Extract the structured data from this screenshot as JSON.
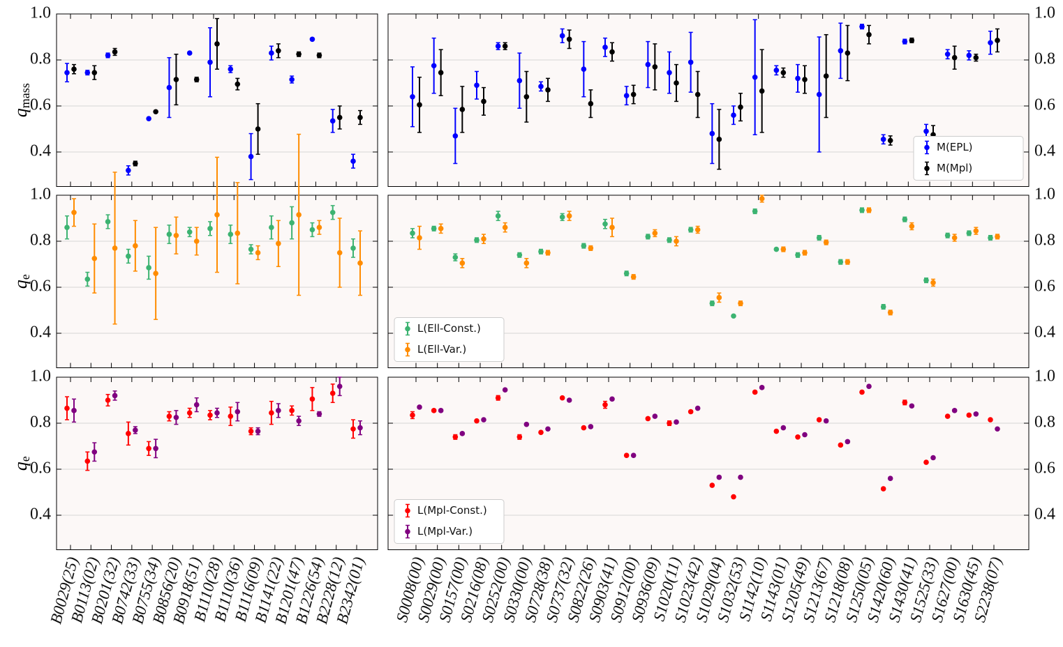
{
  "chart_data": {
    "type": "errorbar",
    "ylim": [
      0.25,
      1.0
    ],
    "yticks": [
      0.4,
      0.6,
      0.8,
      {
        "value": 1.0,
        "label": "1.0"
      }
    ],
    "grid": true,
    "ylabels": [
      {
        "text": "q",
        "sub": "mass"
      },
      {
        "text": "q",
        "sub": "e"
      },
      {
        "text": "q",
        "sub": "e"
      }
    ],
    "groups": [
      {
        "categories": [
          "B0029(25)",
          "B0113(02)",
          "B0201(32)",
          "B0742(33)",
          "B0755(34)",
          "B0856(20)",
          "B0918(51)",
          "B1110(28)",
          "B1110(36)",
          "B1116(09)",
          "B1141(22)",
          "B1201(47)",
          "B1226(54)",
          "B2228(12)",
          "B2342(01)"
        ],
        "panels": [
          {
            "series": [
              {
                "color": "#0000ff",
                "values": [
                  0.745,
                  0.745,
                  0.82,
                  0.32,
                  0.545,
                  0.68,
                  0.83,
                  0.79,
                  0.76,
                  0.38,
                  0.83,
                  0.715,
                  0.89,
                  0.535,
                  0.36
                ],
                "errors": [
                  0.04,
                  0.01,
                  0.01,
                  0.02,
                  0.005,
                  0.13,
                  0.005,
                  0.15,
                  0.015,
                  0.1,
                  0.03,
                  0.015,
                  0.005,
                  0.05,
                  0.03
                ]
              },
              {
                "color": "#000000",
                "values": [
                  0.76,
                  0.745,
                  0.835,
                  0.35,
                  0.575,
                  0.715,
                  0.715,
                  0.87,
                  0.695,
                  0.5,
                  0.84,
                  0.825,
                  0.82,
                  0.55,
                  0.55
                ],
                "errors": [
                  0.02,
                  0.03,
                  0.015,
                  0.01,
                  0.005,
                  0.11,
                  0.01,
                  0.11,
                  0.025,
                  0.11,
                  0.03,
                  0.01,
                  0.01,
                  0.05,
                  0.03
                ]
              }
            ]
          },
          {
            "series": [
              {
                "color": "#3cb371",
                "values": [
                  0.86,
                  0.635,
                  0.885,
                  0.735,
                  0.685,
                  0.83,
                  0.84,
                  0.855,
                  0.83,
                  0.765,
                  0.86,
                  0.88,
                  0.85,
                  0.925,
                  0.77
                ],
                "errors": [
                  0.05,
                  0.03,
                  0.03,
                  0.03,
                  0.05,
                  0.04,
                  0.02,
                  0.03,
                  0.04,
                  0.02,
                  0.05,
                  0.07,
                  0.03,
                  0.03,
                  0.04
                ]
              },
              {
                "color": "#ff8c00",
                "values": [
                  0.925,
                  0.725,
                  0.77,
                  0.78,
                  0.66,
                  0.825,
                  0.8,
                  0.915,
                  0.835,
                  0.75,
                  0.79,
                  0.915,
                  0.86,
                  0.75,
                  0.705
                ],
                "errors": [
                  0.06,
                  0.15,
                  0.33,
                  0.11,
                  0.2,
                  0.08,
                  0.06,
                  0.25,
                  0.22,
                  0.03,
                  0.1,
                  0.35,
                  0.03,
                  0.15,
                  0.14
                ]
              }
            ]
          },
          {
            "series": [
              {
                "color": "#ff0000",
                "values": [
                  0.865,
                  0.635,
                  0.9,
                  0.755,
                  0.69,
                  0.83,
                  0.845,
                  0.835,
                  0.83,
                  0.765,
                  0.845,
                  0.855,
                  0.905,
                  0.93,
                  0.775
                ],
                "errors": [
                  0.05,
                  0.04,
                  0.025,
                  0.05,
                  0.03,
                  0.02,
                  0.02,
                  0.02,
                  0.04,
                  0.015,
                  0.05,
                  0.02,
                  0.05,
                  0.04,
                  0.04
                ]
              },
              {
                "color": "#800080",
                "values": [
                  0.855,
                  0.675,
                  0.92,
                  0.77,
                  0.69,
                  0.825,
                  0.88,
                  0.845,
                  0.85,
                  0.765,
                  0.855,
                  0.81,
                  0.84,
                  0.96,
                  0.78
                ],
                "errors": [
                  0.05,
                  0.04,
                  0.02,
                  0.015,
                  0.04,
                  0.03,
                  0.03,
                  0.02,
                  0.04,
                  0.015,
                  0.03,
                  0.02,
                  0.01,
                  0.04,
                  0.03
                ]
              }
            ]
          }
        ]
      },
      {
        "categories": [
          "S0008(00)",
          "S0029(00)",
          "S0157(00)",
          "S0216(08)",
          "S0252(00)",
          "S0330(00)",
          "S0728(38)",
          "S0737(32)",
          "S0822(26)",
          "S0903(41)",
          "S0912(00)",
          "S0936(09)",
          "S1020(11)",
          "S1023(42)",
          "S1029(04)",
          "S1032(53)",
          "S1142(10)",
          "S1143(01)",
          "S1205(49)",
          "S1213(67)",
          "S1218(08)",
          "S1250(05)",
          "S1420(60)",
          "S1430(41)",
          "S1525(33)",
          "S1627(00)",
          "S1630(45)",
          "S2238(07)"
        ],
        "panels": [
          {
            "legend": "lower right",
            "series": [
              {
                "name": "M(EPL)",
                "color": "#0000ff",
                "values": [
                  0.64,
                  0.775,
                  0.47,
                  0.69,
                  0.86,
                  0.71,
                  0.685,
                  0.905,
                  0.76,
                  0.855,
                  0.645,
                  0.78,
                  0.745,
                  0.79,
                  0.48,
                  0.56,
                  0.725,
                  0.755,
                  0.72,
                  0.65,
                  0.84,
                  0.945,
                  0.455,
                  0.88,
                  0.49,
                  0.825,
                  0.82,
                  0.875
                ],
                "errors": [
                  0.13,
                  0.12,
                  0.12,
                  0.06,
                  0.015,
                  0.12,
                  0.02,
                  0.03,
                  0.12,
                  0.04,
                  0.04,
                  0.1,
                  0.09,
                  0.13,
                  0.13,
                  0.04,
                  0.25,
                  0.02,
                  0.06,
                  0.25,
                  0.12,
                  0.01,
                  0.02,
                  0.01,
                  0.03,
                  0.02,
                  0.02,
                  0.05
                ]
              },
              {
                "name": "M(Mpl)",
                "color": "#000000",
                "values": [
                  0.605,
                  0.745,
                  0.585,
                  0.62,
                  0.86,
                  0.64,
                  0.67,
                  0.89,
                  0.61,
                  0.835,
                  0.65,
                  0.77,
                  0.7,
                  0.65,
                  0.455,
                  0.595,
                  0.665,
                  0.745,
                  0.715,
                  0.73,
                  0.83,
                  0.91,
                  0.45,
                  0.885,
                  0.475,
                  0.81,
                  0.81,
                  0.885
                ],
                "errors": [
                  0.12,
                  0.1,
                  0.1,
                  0.06,
                  0.015,
                  0.11,
                  0.05,
                  0.04,
                  0.06,
                  0.04,
                  0.04,
                  0.1,
                  0.08,
                  0.1,
                  0.13,
                  0.06,
                  0.18,
                  0.02,
                  0.06,
                  0.18,
                  0.12,
                  0.04,
                  0.02,
                  0.01,
                  0.04,
                  0.05,
                  0.015,
                  0.05
                ]
              }
            ]
          },
          {
            "legend": "lower left",
            "series": [
              {
                "name": "L(Ell-Const.)",
                "color": "#3cb371",
                "values": [
                  0.835,
                  0.855,
                  0.73,
                  0.805,
                  0.91,
                  0.74,
                  0.755,
                  0.905,
                  0.78,
                  0.875,
                  0.66,
                  0.82,
                  0.805,
                  0.85,
                  0.53,
                  0.475,
                  0.93,
                  0.765,
                  0.74,
                  0.815,
                  0.71,
                  0.935,
                  0.515,
                  0.895,
                  0.63,
                  0.825,
                  0.835,
                  0.815
                ],
                "errors": [
                  0.02,
                  0.01,
                  0.015,
                  0.01,
                  0.02,
                  0.01,
                  0.01,
                  0.015,
                  0.01,
                  0.02,
                  0.01,
                  0.01,
                  0.01,
                  0.01,
                  0.01,
                  0.005,
                  0.01,
                  0.005,
                  0.01,
                  0.01,
                  0.01,
                  0.01,
                  0.01,
                  0.01,
                  0.01,
                  0.01,
                  0.01,
                  0.01
                ]
              },
              {
                "name": "L(Ell-Var.)",
                "color": "#ff8c00",
                "values": [
                  0.815,
                  0.855,
                  0.705,
                  0.81,
                  0.86,
                  0.705,
                  0.75,
                  0.91,
                  0.77,
                  0.86,
                  0.645,
                  0.835,
                  0.8,
                  0.85,
                  0.555,
                  0.53,
                  0.985,
                  0.765,
                  0.75,
                  0.795,
                  0.71,
                  0.935,
                  0.49,
                  0.865,
                  0.62,
                  0.815,
                  0.845,
                  0.82
                ],
                "errors": [
                  0.05,
                  0.02,
                  0.02,
                  0.02,
                  0.02,
                  0.02,
                  0.01,
                  0.02,
                  0.01,
                  0.04,
                  0.01,
                  0.015,
                  0.02,
                  0.015,
                  0.02,
                  0.01,
                  0.015,
                  0.01,
                  0.01,
                  0.01,
                  0.01,
                  0.01,
                  0.01,
                  0.015,
                  0.015,
                  0.015,
                  0.015,
                  0.01
                ]
              }
            ]
          },
          {
            "legend": "lower left",
            "series": [
              {
                "name": "L(Mpl-Const.)",
                "color": "#ff0000",
                "values": [
                  0.835,
                  0.855,
                  0.74,
                  0.81,
                  0.91,
                  0.74,
                  0.76,
                  0.91,
                  0.78,
                  0.88,
                  0.66,
                  0.82,
                  0.8,
                  0.85,
                  0.53,
                  0.48,
                  0.935,
                  0.765,
                  0.74,
                  0.815,
                  0.705,
                  0.935,
                  0.515,
                  0.89,
                  0.63,
                  0.83,
                  0.835,
                  0.815
                ],
                "errors": [
                  0.015,
                  0.005,
                  0.01,
                  0.005,
                  0.01,
                  0.01,
                  0.005,
                  0.005,
                  0.005,
                  0.015,
                  0.005,
                  0.005,
                  0.01,
                  0.005,
                  0.005,
                  0.005,
                  0.005,
                  0.005,
                  0.005,
                  0.005,
                  0.005,
                  0.005,
                  0.005,
                  0.01,
                  0.005,
                  0.005,
                  0.005,
                  0.005
                ]
              },
              {
                "name": "L(Mpl-Var.)",
                "color": "#800080",
                "values": [
                  0.87,
                  0.855,
                  0.755,
                  0.815,
                  0.945,
                  0.795,
                  0.775,
                  0.9,
                  0.785,
                  0.905,
                  0.66,
                  0.83,
                  0.805,
                  0.865,
                  0.565,
                  0.565,
                  0.955,
                  0.78,
                  0.75,
                  0.81,
                  0.72,
                  0.96,
                  0.56,
                  0.875,
                  0.65,
                  0.855,
                  0.84,
                  0.775
                ],
                "errors": [
                  0.005,
                  0.005,
                  0.005,
                  0.005,
                  0.005,
                  0.005,
                  0.005,
                  0.005,
                  0.005,
                  0.005,
                  0.005,
                  0.005,
                  0.005,
                  0.005,
                  0.005,
                  0.005,
                  0.005,
                  0.005,
                  0.005,
                  0.005,
                  0.005,
                  0.005,
                  0.005,
                  0.005,
                  0.005,
                  0.005,
                  0.005,
                  0.005
                ]
              }
            ]
          }
        ]
      }
    ]
  }
}
